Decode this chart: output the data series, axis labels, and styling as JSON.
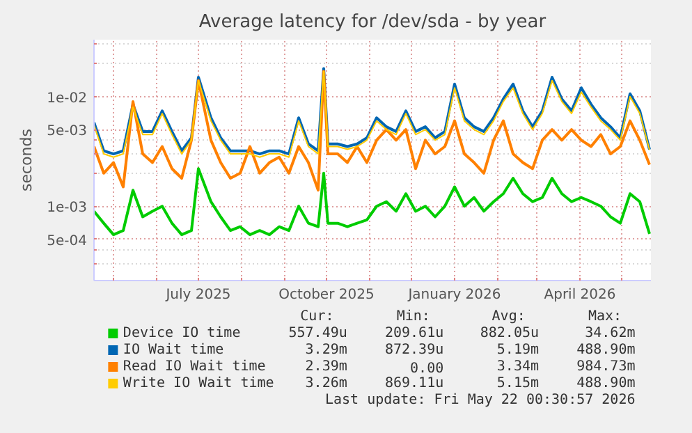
{
  "chart_data": {
    "type": "line",
    "title": "Average latency for /dev/sda - by year",
    "ylabel": "seconds",
    "x": [
      "2025-04-17",
      "2025-04-24",
      "2025-05-01",
      "2025-05-08",
      "2025-05-15",
      "2025-05-22",
      "2025-05-29",
      "2025-06-05",
      "2025-06-12",
      "2025-06-19",
      "2025-06-26",
      "2025-07-01",
      "2025-07-10",
      "2025-07-17",
      "2025-07-24",
      "2025-07-31",
      "2025-08-07",
      "2025-08-14",
      "2025-08-21",
      "2025-08-28",
      "2025-09-04",
      "2025-09-11",
      "2025-09-18",
      "2025-09-25",
      "2025-09-29",
      "2025-10-02",
      "2025-10-09",
      "2025-10-16",
      "2025-10-23",
      "2025-10-30",
      "2025-11-06",
      "2025-11-13",
      "2025-11-20",
      "2025-11-27",
      "2025-12-04",
      "2025-12-11",
      "2025-12-18",
      "2025-12-25",
      "2026-01-01",
      "2026-01-08",
      "2026-01-15",
      "2026-01-22",
      "2026-01-29",
      "2026-02-05",
      "2026-02-12",
      "2026-02-19",
      "2026-02-26",
      "2026-03-05",
      "2026-03-12",
      "2026-03-19",
      "2026-03-26",
      "2026-04-02",
      "2026-04-09",
      "2026-04-16",
      "2026-04-23",
      "2026-04-30",
      "2026-05-07",
      "2026-05-14",
      "2026-05-21"
    ],
    "series": [
      {
        "name": "Device IO time",
        "color": "#00cc00",
        "values": [
          0.0009,
          0.0007,
          0.00055,
          0.0006,
          0.0014,
          0.0008,
          0.0009,
          0.001,
          0.0007,
          0.00055,
          0.0006,
          0.0022,
          0.0011,
          0.0008,
          0.0006,
          0.00065,
          0.00055,
          0.0006,
          0.00055,
          0.00065,
          0.0006,
          0.001,
          0.0007,
          0.00065,
          0.002,
          0.0007,
          0.0007,
          0.00065,
          0.0007,
          0.00075,
          0.001,
          0.0011,
          0.0009,
          0.0013,
          0.0009,
          0.001,
          0.0008,
          0.001,
          0.0015,
          0.001,
          0.0012,
          0.0009,
          0.0011,
          0.0013,
          0.0018,
          0.0013,
          0.0011,
          0.0012,
          0.0018,
          0.0013,
          0.0011,
          0.0012,
          0.0011,
          0.001,
          0.0008,
          0.0007,
          0.0013,
          0.0011,
          0.00056
        ]
      },
      {
        "name": "IO Wait time",
        "color": "#0066b3",
        "values": [
          0.0058,
          0.0032,
          0.003,
          0.0032,
          0.0085,
          0.0048,
          0.0048,
          0.0074,
          0.0048,
          0.0032,
          0.0042,
          0.015,
          0.0064,
          0.0042,
          0.0032,
          0.0032,
          0.0032,
          0.003,
          0.0032,
          0.0032,
          0.003,
          0.0064,
          0.0037,
          0.0032,
          0.018,
          0.0037,
          0.0037,
          0.0035,
          0.0037,
          0.0042,
          0.0064,
          0.0053,
          0.0048,
          0.0074,
          0.0048,
          0.0053,
          0.0042,
          0.0048,
          0.013,
          0.0064,
          0.0053,
          0.0048,
          0.0064,
          0.0095,
          0.013,
          0.0074,
          0.0053,
          0.0074,
          0.015,
          0.0095,
          0.0074,
          0.012,
          0.0085,
          0.0064,
          0.0053,
          0.0042,
          0.0106,
          0.0074,
          0.00329
        ]
      },
      {
        "name": "Read IO Wait time",
        "color": "#ff8000",
        "values": [
          0.0035,
          0.002,
          0.0025,
          0.0015,
          0.009,
          0.003,
          0.0025,
          0.0035,
          0.0022,
          0.0018,
          0.004,
          0.014,
          0.004,
          0.0025,
          0.0018,
          0.002,
          0.0035,
          0.002,
          0.0025,
          0.0028,
          0.002,
          0.0035,
          0.0025,
          0.0014,
          0.017,
          0.003,
          0.003,
          0.0025,
          0.0035,
          0.0025,
          0.004,
          0.005,
          0.004,
          0.005,
          0.0022,
          0.004,
          0.003,
          0.0035,
          0.006,
          0.003,
          0.0025,
          0.002,
          0.004,
          0.006,
          0.003,
          0.0025,
          0.0022,
          0.004,
          0.005,
          0.004,
          0.005,
          0.004,
          0.0035,
          0.0045,
          0.003,
          0.0035,
          0.006,
          0.004,
          0.00239
        ]
      },
      {
        "name": "Write IO Wait time",
        "color": "#ffcc00",
        "values": [
          0.0055,
          0.003,
          0.0028,
          0.003,
          0.008,
          0.0045,
          0.0045,
          0.007,
          0.0045,
          0.003,
          0.004,
          0.014,
          0.006,
          0.004,
          0.003,
          0.003,
          0.003,
          0.0028,
          0.003,
          0.003,
          0.0028,
          0.006,
          0.0035,
          0.003,
          0.017,
          0.0035,
          0.0035,
          0.0033,
          0.0035,
          0.004,
          0.006,
          0.005,
          0.0045,
          0.007,
          0.0045,
          0.005,
          0.004,
          0.0045,
          0.012,
          0.006,
          0.005,
          0.0045,
          0.006,
          0.009,
          0.012,
          0.007,
          0.005,
          0.007,
          0.014,
          0.009,
          0.007,
          0.011,
          0.008,
          0.006,
          0.005,
          0.004,
          0.01,
          0.007,
          0.00326
        ]
      }
    ],
    "xlim": [
      "2025-04-17",
      "2026-05-22"
    ],
    "xticks": [
      {
        "value": "2025-05-01",
        "label": null
      },
      {
        "value": "2025-06-01",
        "label": null
      },
      {
        "value": "2025-07-01",
        "label": "July 2025"
      },
      {
        "value": "2025-08-01",
        "label": null
      },
      {
        "value": "2025-09-01",
        "label": null
      },
      {
        "value": "2025-10-01",
        "label": "October 2025"
      },
      {
        "value": "2025-11-01",
        "label": null
      },
      {
        "value": "2025-12-01",
        "label": null
      },
      {
        "value": "2026-01-01",
        "label": "January 2026"
      },
      {
        "value": "2026-02-01",
        "label": null
      },
      {
        "value": "2026-03-01",
        "label": null
      },
      {
        "value": "2026-04-01",
        "label": "April 2026"
      },
      {
        "value": "2026-05-01",
        "label": null
      }
    ],
    "ylim": [
      0.00021,
      0.033
    ],
    "yticks": [
      {
        "value": 0.0003,
        "label": null
      },
      {
        "value": 0.0004,
        "label": null
      },
      {
        "value": 0.0005,
        "label": "5e-04"
      },
      {
        "value": 0.001,
        "label": "1e-03"
      },
      {
        "value": 0.002,
        "label": null
      },
      {
        "value": 0.003,
        "label": null
      },
      {
        "value": 0.004,
        "label": null
      },
      {
        "value": 0.005,
        "label": "5e-03"
      },
      {
        "value": 0.01,
        "label": "1e-02"
      },
      {
        "value": 0.02,
        "label": null
      },
      {
        "value": 0.03,
        "label": null
      }
    ],
    "log": "y",
    "grid": true,
    "legend": "bottom",
    "annotations": [
      "Cur:",
      "Min:",
      "Avg:",
      "Max:",
      "557.49u",
      "209.61u",
      "882.05u",
      "34.62m",
      "3.29m",
      "872.39u",
      "5.19m",
      "488.90m",
      "2.39m",
      "0.00",
      "3.34m",
      "984.73m",
      "3.26m",
      "869.11u",
      "5.15m",
      "488.90m",
      "Last update: Fri May 22 00:30:57 2026"
    ]
  }
}
